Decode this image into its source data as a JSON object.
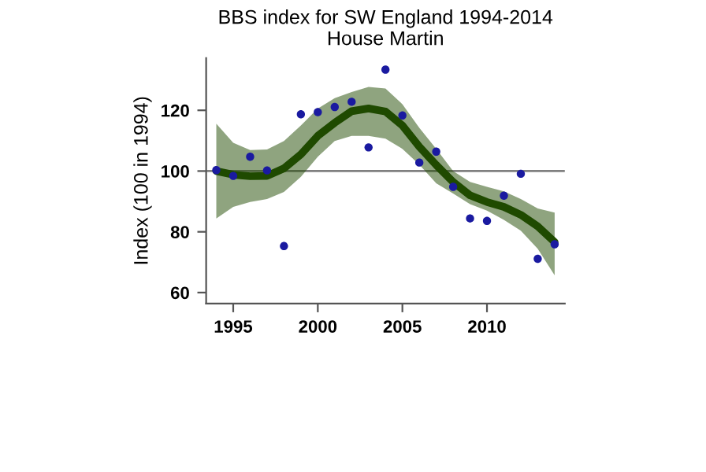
{
  "chart_data": {
    "type": "scatter",
    "title": "BBS index for SW England 1994-2014",
    "subtitle": "House Martin",
    "ylabel": "Index (100 in 1994)",
    "xlim": [
      1993.4,
      2014.6
    ],
    "xticks": [
      1995,
      2000,
      2005,
      2010
    ],
    "ylim": [
      56.4,
      137.2
    ],
    "yticks": [
      60,
      80,
      100,
      120
    ],
    "grid": false,
    "legend": false,
    "ref_lines": [
      {
        "axis": "y",
        "value": 100,
        "color": "#808080"
      }
    ],
    "series": [
      {
        "type": "line",
        "color": "#1f4a00",
        "marker": "none",
        "x": [
          1994,
          1995,
          1996,
          1997,
          1998,
          1999,
          2000,
          2001,
          2002,
          2003,
          2004,
          2005,
          2006,
          2007,
          2008,
          2009,
          2010,
          2011,
          2012,
          2013,
          2014
        ],
        "values": [
          100,
          98.8,
          98.3,
          98.4,
          100.9,
          105.5,
          111.6,
          115.9,
          119.7,
          120.6,
          119.6,
          115,
          108,
          102,
          96.4,
          92,
          89.8,
          88.2,
          85.6,
          81.8,
          76.6
        ],
        "lower": [
          84.4,
          88.2,
          89.8,
          90.8,
          93.1,
          98.1,
          104.7,
          109.9,
          111.6,
          111.6,
          110.7,
          107.3,
          102.1,
          96,
          92.6,
          89.1,
          87,
          83.9,
          80.4,
          74.4,
          65.7
        ],
        "upper": [
          115.6,
          109.3,
          106.9,
          107.1,
          109.9,
          115,
          120.6,
          124,
          126,
          127.7,
          127.2,
          122,
          114.2,
          107.3,
          100,
          96.4,
          94.8,
          93.3,
          90.8,
          87.7,
          86.3
        ]
      },
      {
        "color": "#1a1aa0",
        "marker": "circle",
        "x": [
          1994,
          1995,
          1996,
          1997,
          1998,
          1999,
          2000,
          2001,
          2002,
          2003,
          2004,
          2005,
          2006,
          2007,
          2008,
          2009,
          2010,
          2011,
          2012,
          2013,
          2014
        ],
        "values": [
          100.3,
          98.4,
          104.7,
          100.2,
          75.3,
          118.7,
          119.4,
          121.1,
          122.8,
          107.8,
          133.4,
          118.3,
          102.8,
          106.4,
          94.8,
          84.4,
          83.6,
          91.9,
          99.1,
          71.1,
          75.9
        ]
      }
    ]
  }
}
